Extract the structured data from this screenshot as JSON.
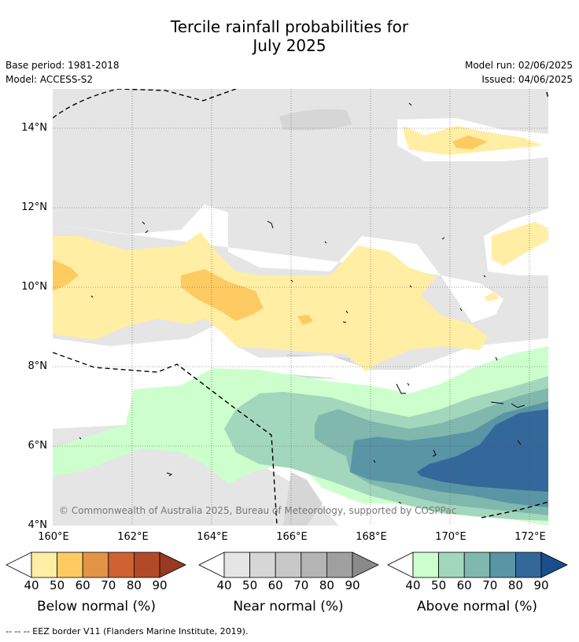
{
  "title": {
    "line1": "Tercile rainfall probabilities for",
    "line2": "July 2025"
  },
  "meta": {
    "base_period": "Base period: 1981-2018",
    "model": "Model: ACCESS-S2",
    "model_run": "Model run: 02/06/2025",
    "issued": "Issued: 04/06/2025"
  },
  "map": {
    "lat_labels": [
      "14°N",
      "12°N",
      "10°N",
      "8°N",
      "6°N",
      "4°N"
    ],
    "lon_labels": [
      "160°E",
      "162°E",
      "164°E",
      "166°E",
      "168°E",
      "170°E",
      "172°E"
    ],
    "copyright": "© Commonwealth of Australia 2025, Bureau of Meteorology, supported by COSPPac"
  },
  "colorbars": [
    {
      "label": "Below normal (%)",
      "ticks": [
        "40",
        "50",
        "60",
        "70",
        "80",
        "90"
      ],
      "colors": [
        "#ffeea4",
        "#fdcb62",
        "#e39446",
        "#cf6232",
        "#b34a27",
        "#973923"
      ]
    },
    {
      "label": "Near normal (%)",
      "ticks": [
        "40",
        "50",
        "60",
        "70",
        "80",
        "90"
      ],
      "colors": [
        "#e5e5e5",
        "#d6d6d6",
        "#c8c8c8",
        "#b4b4b4",
        "#a0a0a0",
        "#8a8a8a"
      ]
    },
    {
      "label": "Above normal (%)",
      "ticks": [
        "40",
        "50",
        "60",
        "70",
        "80",
        "90"
      ],
      "colors": [
        "#ccffcc",
        "#a3d7bd",
        "#80b8ae",
        "#5a95a5",
        "#34679a",
        "#1a4e8b"
      ]
    }
  ],
  "footer": "--  --  -- EEZ border V11 (Flanders Marine Institute, 2019)."
}
